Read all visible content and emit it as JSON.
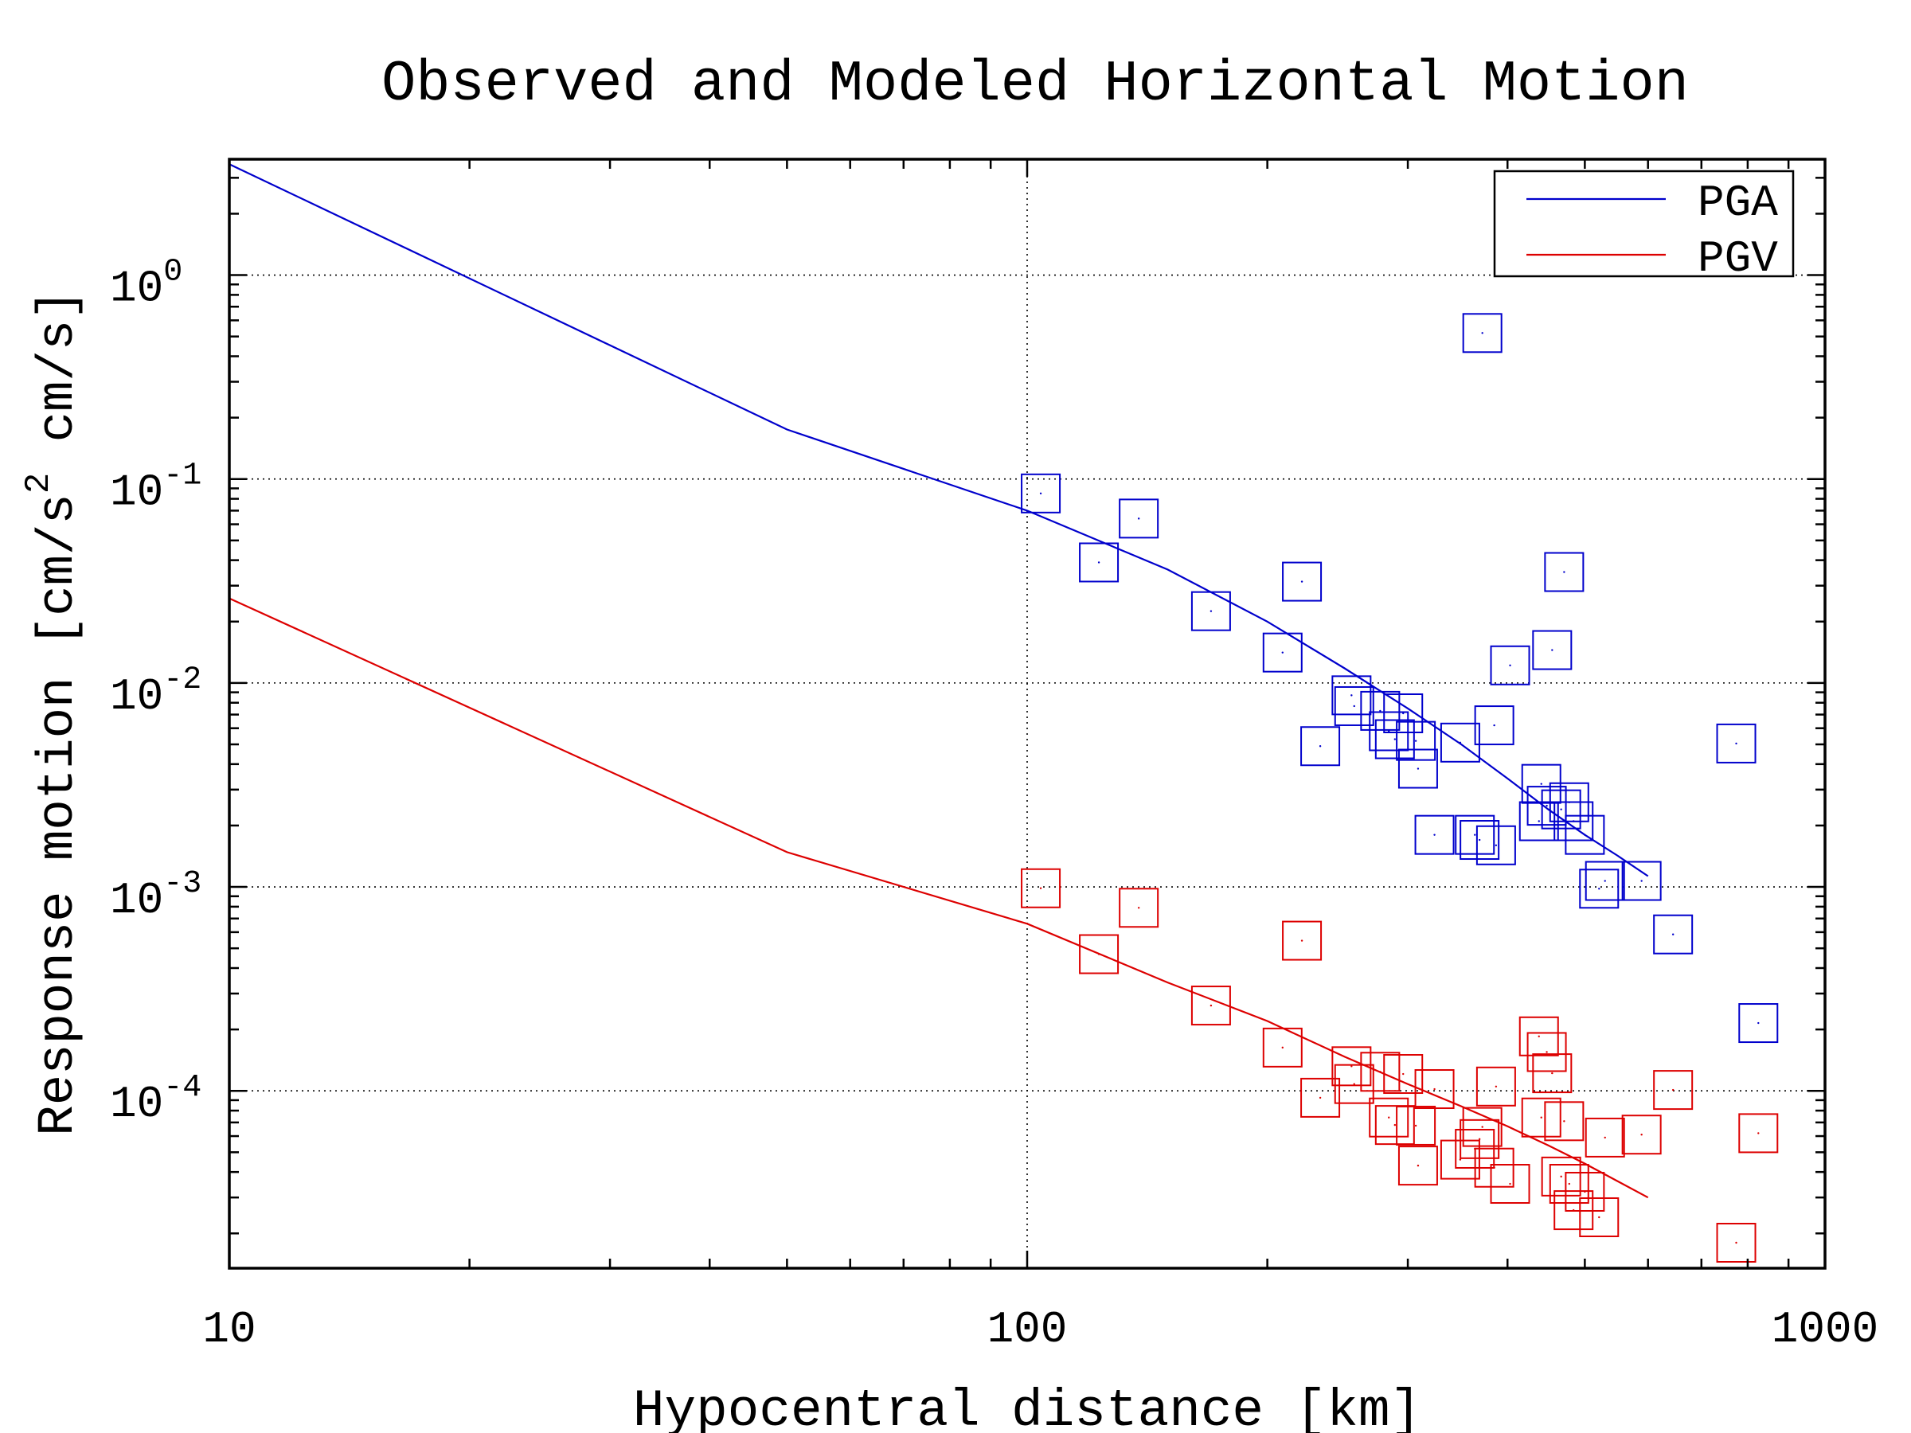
{
  "chart_data": {
    "type": "scatter",
    "title": "Observed and Modeled Horizontal Motion",
    "xlabel": "Hypocentral distance [km]",
    "ylabel_parts": [
      "Response motion  [cm/s",
      "2",
      "  cm/s]"
    ],
    "xscale": "log",
    "yscale": "log",
    "xlim": [
      10,
      1000
    ],
    "ylim": [
      1.35e-05,
      3.7
    ],
    "x_ticks": [
      {
        "value": 10,
        "label": "10"
      },
      {
        "value": 100,
        "label": "100"
      },
      {
        "value": 1000,
        "label": "1000"
      }
    ],
    "y_ticks": [
      {
        "value": 1,
        "base": "10",
        "exp": "0"
      },
      {
        "value": 0.1,
        "base": "10",
        "exp": "-1"
      },
      {
        "value": 0.01,
        "base": "10",
        "exp": "-2"
      },
      {
        "value": 0.001,
        "base": "10",
        "exp": "-3"
      },
      {
        "value": 0.0001,
        "base": "10",
        "exp": "-4"
      }
    ],
    "grid": "dotted, major ticks only",
    "legend": {
      "placement": "top-right",
      "entries": [
        {
          "label": "PGA",
          "color": "#0000cc"
        },
        {
          "label": "PGV",
          "color": "#dd0000"
        }
      ]
    },
    "series": [
      {
        "name": "PGA",
        "kind": "line",
        "color": "#0000cc",
        "x": [
          10,
          50,
          100,
          150,
          200,
          250,
          300,
          350,
          400,
          450,
          500,
          550,
          600
        ],
        "y": [
          3.5,
          0.175,
          0.07,
          0.036,
          0.02,
          0.0118,
          0.0075,
          0.005,
          0.0034,
          0.0024,
          0.0018,
          0.00142,
          0.00113
        ]
      },
      {
        "name": "PGV",
        "kind": "line",
        "color": "#dd0000",
        "x": [
          10,
          50,
          100,
          150,
          200,
          250,
          300,
          350,
          400,
          450,
          500,
          550,
          600
        ],
        "y": [
          0.026,
          0.00148,
          0.00066,
          0.00034,
          0.00022,
          0.000147,
          0.000108,
          8.4e-05,
          6.7e-05,
          5.4e-05,
          4.4e-05,
          3.6e-05,
          3e-05
        ]
      },
      {
        "name": "PGA",
        "kind": "points",
        "color": "#0000cc",
        "x": [
          104,
          123,
          138,
          170,
          209,
          221,
          233,
          255,
          257,
          277,
          284,
          289,
          296,
          307,
          309,
          324,
          349,
          364,
          369,
          372,
          385,
          387,
          403,
          438,
          441,
          448,
          455,
          467,
          471,
          478,
          484,
          500,
          521,
          530,
          589,
          645,
          774,
          825
        ],
        "y": [
          0.085,
          0.039,
          0.064,
          0.0225,
          0.0141,
          0.0314,
          0.0049,
          0.0087,
          0.0077,
          0.0073,
          0.0058,
          0.0053,
          0.0071,
          0.0052,
          0.0038,
          0.0018,
          0.0051,
          0.0018,
          0.0017,
          0.52,
          0.0062,
          0.0016,
          0.0122,
          0.0021,
          0.0032,
          0.0025,
          0.0145,
          0.0024,
          0.035,
          0.0026,
          0.0021,
          0.0018,
          0.00098,
          0.00107,
          0.00107,
          0.000585,
          0.00505,
          0.000215
        ]
      },
      {
        "name": "PGV",
        "kind": "points",
        "color": "#dd0000",
        "x": [
          104,
          123,
          138,
          170,
          209,
          221,
          233,
          255,
          257,
          277,
          284,
          289,
          296,
          307,
          309,
          324,
          349,
          364,
          369,
          372,
          385,
          387,
          403,
          438,
          441,
          448,
          455,
          467,
          471,
          478,
          484,
          500,
          521,
          530,
          589,
          645,
          774,
          825
        ],
        "y": [
          0.000985,
          0.000468,
          0.00079,
          0.000262,
          0.000163,
          0.000545,
          9.25e-05,
          0.000132,
          0.000108,
          0.000124,
          7.4e-05,
          6.8e-05,
          0.000121,
          6.75e-05,
          4.3e-05,
          0.000102,
          4.6e-05,
          5.2e-05,
          5.8e-05,
          6.65e-05,
          4.2e-05,
          0.000105,
          3.5e-05,
          0.000185,
          7.4e-05,
          0.000155,
          0.000122,
          3.8e-05,
          7.1e-05,
          3.5e-05,
          2.6e-05,
          3.2e-05,
          2.4e-05,
          5.9e-05,
          6.1e-05,
          0.000101,
          1.8e-05,
          6.2e-05
        ]
      }
    ]
  }
}
